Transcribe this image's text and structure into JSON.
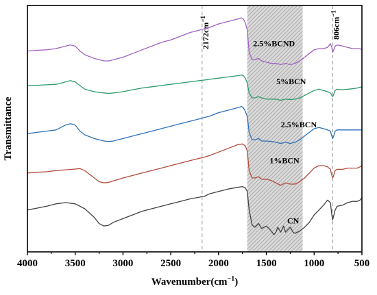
{
  "chart_data": {
    "type": "line",
    "title": "",
    "xlabel": "Wavenumber(cm",
    "xlabel_sup": "−1",
    "xlabel_close": ")",
    "ylabel": "Transmittance",
    "xlim": [
      4000,
      500
    ],
    "x_reversed": true,
    "ylim": [
      0,
      100
    ],
    "y_ticks_shown": false,
    "x_ticks": [
      4000,
      3500,
      3000,
      2500,
      2000,
      1500,
      1000,
      500
    ],
    "x_tick_labels": [
      "4000",
      "3500",
      "3000",
      "2500",
      "2000",
      "1500",
      "1000",
      "500"
    ],
    "grid": false,
    "legend": "none",
    "shaded_region": {
      "x_start": 1700,
      "x_end": 1120,
      "color": "#9e9e9e",
      "pattern": "hatch"
    },
    "annotations": [
      {
        "x": 2172,
        "label_main": "2172cm",
        "label_sup": "−1",
        "color": "#9a9a9a"
      },
      {
        "x": 806,
        "label_main": "806cm",
        "label_sup": "−1",
        "color": "#9a9a9a"
      }
    ],
    "series": [
      {
        "name": "CN",
        "color": "#404040",
        "label_x": 1220,
        "label_y": 11.5,
        "x": [
          4000,
          3800,
          3700,
          3600,
          3500,
          3400,
          3300,
          3250,
          3200,
          3150,
          3100,
          3000,
          2900,
          2800,
          2700,
          2600,
          2500,
          2400,
          2300,
          2200,
          2172,
          2150,
          2100,
          2000,
          1900,
          1800,
          1750,
          1720,
          1700,
          1680,
          1650,
          1620,
          1580,
          1550,
          1500,
          1460,
          1420,
          1400,
          1380,
          1350,
          1320,
          1300,
          1250,
          1220,
          1200,
          1150,
          1100,
          1050,
          1000,
          950,
          900,
          860,
          830,
          815,
          806,
          800,
          780,
          760,
          700,
          650,
          600,
          550,
          520,
          500
        ],
        "y": [
          17,
          18.5,
          19.5,
          20,
          19.5,
          17.5,
          14,
          11.5,
          10.5,
          10.8,
          12,
          13.5,
          15,
          16.5,
          17.5,
          18.5,
          19.5,
          20.5,
          21.5,
          22.2,
          22.5,
          22.5,
          23.5,
          24.5,
          25.5,
          26.2,
          26.5,
          26,
          24.5,
          17,
          11,
          10,
          11.5,
          9.5,
          10.5,
          9,
          7,
          8,
          10,
          8,
          10.5,
          8,
          10,
          8,
          7.5,
          8.5,
          10,
          12,
          15,
          17,
          19,
          21,
          20,
          15,
          13,
          14,
          17,
          18.5,
          19,
          20,
          20.5,
          20.5,
          21,
          22
        ]
      },
      {
        "name": "1%BCN",
        "color": "#b04a3a",
        "label_x": 1310,
        "label_y": 36,
        "x": [
          4000,
          3900,
          3800,
          3700,
          3600,
          3500,
          3450,
          3400,
          3350,
          3300,
          3250,
          3200,
          3150,
          3100,
          3000,
          2900,
          2800,
          2700,
          2600,
          2500,
          2400,
          2300,
          2200,
          2172,
          2100,
          2000,
          1900,
          1800,
          1750,
          1720,
          1700,
          1680,
          1650,
          1620,
          1580,
          1550,
          1500,
          1450,
          1400,
          1350,
          1300,
          1250,
          1200,
          1150,
          1100,
          1050,
          1000,
          950,
          900,
          860,
          830,
          815,
          806,
          800,
          780,
          760,
          700,
          650,
          600,
          550,
          520,
          500
        ],
        "y": [
          32,
          32.3,
          32.5,
          33,
          33.3,
          33.6,
          33.8,
          33,
          31.5,
          30,
          28.5,
          28,
          28.2,
          28.8,
          30,
          31,
          32,
          33,
          34,
          35,
          36,
          37,
          38,
          38.2,
          39,
          40.5,
          42,
          43.5,
          43.8,
          43,
          41,
          33,
          30,
          30,
          30.5,
          29.5,
          29.5,
          29,
          28,
          27,
          28,
          27.5,
          27.5,
          28.5,
          30,
          32,
          34,
          35,
          35,
          34.5,
          33.5,
          31,
          30,
          30.5,
          33,
          33.5,
          33.5,
          34,
          34,
          34,
          34.5,
          35
        ]
      },
      {
        "name": "2.5%BCN",
        "color": "#2d6fb8",
        "label_x": 1160,
        "label_y": 50.5,
        "x": [
          4000,
          3900,
          3800,
          3700,
          3600,
          3550,
          3500,
          3450,
          3400,
          3300,
          3200,
          3150,
          3100,
          3000,
          2900,
          2800,
          2700,
          2600,
          2500,
          2400,
          2300,
          2200,
          2172,
          2100,
          2000,
          1900,
          1800,
          1760,
          1740,
          1720,
          1700,
          1680,
          1650,
          1620,
          1580,
          1550,
          1500,
          1450,
          1400,
          1350,
          1300,
          1250,
          1200,
          1150,
          1100,
          1050,
          1000,
          950,
          900,
          860,
          830,
          815,
          806,
          800,
          780,
          760,
          700,
          650,
          600,
          550,
          520,
          500
        ],
        "y": [
          48,
          48.5,
          49,
          49.5,
          51.5,
          52,
          51.5,
          49,
          47.5,
          46,
          45,
          44.8,
          45,
          46,
          47,
          48,
          49,
          50,
          51,
          52,
          53,
          54,
          54.3,
          55,
          56.5,
          57.5,
          58.5,
          59,
          58.5,
          57,
          55,
          48.5,
          45.5,
          45.5,
          46,
          45,
          45,
          44.8,
          44.5,
          44,
          44.5,
          44,
          44.5,
          45.5,
          47,
          48.5,
          50,
          50.5,
          50,
          49.5,
          49,
          47,
          46,
          46.5,
          49,
          49.5,
          49.5,
          49.5,
          49.5,
          49.5,
          49.5,
          49.5
        ]
      },
      {
        "name": "5%BCN",
        "color": "#2a9a6a",
        "label_x": 1240,
        "label_y": 68,
        "x": [
          4000,
          3900,
          3800,
          3700,
          3600,
          3550,
          3500,
          3450,
          3400,
          3300,
          3200,
          3150,
          3100,
          3000,
          2900,
          2800,
          2700,
          2600,
          2500,
          2400,
          2300,
          2200,
          2172,
          2100,
          2000,
          1900,
          1800,
          1760,
          1740,
          1720,
          1700,
          1680,
          1650,
          1620,
          1580,
          1550,
          1500,
          1450,
          1400,
          1350,
          1300,
          1250,
          1200,
          1150,
          1100,
          1050,
          1000,
          950,
          900,
          860,
          830,
          815,
          806,
          800,
          780,
          760,
          700,
          650,
          600,
          550,
          520,
          500
        ],
        "y": [
          67.5,
          67.6,
          67.8,
          68,
          69,
          69.5,
          69,
          67.5,
          66,
          65,
          64.5,
          64.3,
          64.5,
          65,
          65.8,
          66.5,
          67,
          67.5,
          68,
          68.5,
          69,
          69.5,
          69.6,
          70,
          70.5,
          71,
          71.5,
          71.8,
          71.5,
          70.5,
          68.5,
          64.5,
          62.5,
          62.5,
          63,
          62.5,
          62,
          62,
          62,
          61.5,
          62,
          61.8,
          62,
          62.5,
          63.5,
          64.5,
          65.5,
          66,
          65.5,
          65,
          64.5,
          63.5,
          63,
          63.5,
          65.5,
          66,
          65.8,
          66,
          66.2,
          66.5,
          66.8,
          67
        ]
      },
      {
        "name": "2.5%BCND",
        "color": "#a060c0",
        "label_x": 1420,
        "label_y": 83.5,
        "x": [
          4000,
          3900,
          3800,
          3700,
          3600,
          3550,
          3500,
          3450,
          3400,
          3300,
          3200,
          3150,
          3100,
          3000,
          2900,
          2800,
          2700,
          2600,
          2500,
          2400,
          2300,
          2200,
          2172,
          2100,
          2000,
          1900,
          1800,
          1760,
          1740,
          1720,
          1700,
          1680,
          1650,
          1620,
          1580,
          1550,
          1500,
          1450,
          1400,
          1350,
          1300,
          1250,
          1200,
          1150,
          1100,
          1050,
          1000,
          950,
          900,
          860,
          830,
          815,
          806,
          800,
          780,
          760,
          700,
          650,
          600,
          550,
          520,
          500
        ],
        "y": [
          81.5,
          81.8,
          82,
          82.5,
          83.5,
          84,
          83.5,
          81.5,
          80,
          78.5,
          77.5,
          77.5,
          78,
          79,
          80.5,
          82,
          83.5,
          85,
          86,
          87.5,
          89,
          90,
          90.3,
          91,
          92.5,
          93.5,
          94.5,
          95,
          94.5,
          93,
          90,
          81,
          78,
          78,
          78.5,
          77.5,
          77,
          76.5,
          76.5,
          76,
          76.5,
          76,
          76.5,
          77.5,
          79,
          80.5,
          82,
          82.5,
          82.5,
          83,
          84.5,
          83,
          81,
          81.5,
          83.5,
          84,
          83.5,
          83,
          82.5,
          82.5,
          82.5,
          82
        ]
      }
    ]
  }
}
